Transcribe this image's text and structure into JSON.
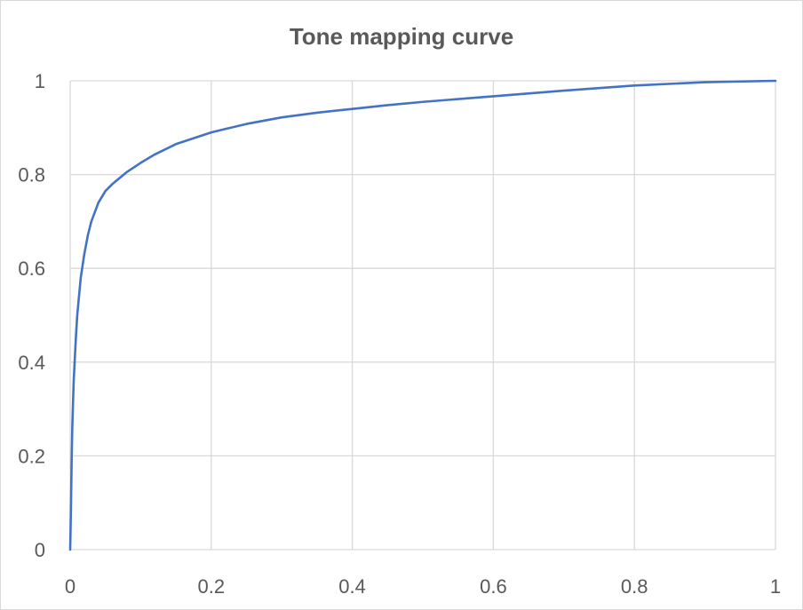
{
  "chart_data": {
    "type": "line",
    "title": "Tone mapping curve",
    "xlabel": "",
    "ylabel": "",
    "xlim": [
      0,
      1
    ],
    "ylim": [
      0,
      1
    ],
    "x_ticks": [
      "0",
      "0.2",
      "0.4",
      "0.6",
      "0.8",
      "1"
    ],
    "y_ticks": [
      "0",
      "0.2",
      "0.4",
      "0.6",
      "0.8",
      "1"
    ],
    "grid": true,
    "legend": "none",
    "colors": {
      "series": "#4472c4",
      "grid": "#d9d9d9",
      "text": "#595959"
    },
    "series": [
      {
        "x": [
          0,
          0.001,
          0.002,
          0.003,
          0.005,
          0.008,
          0.01,
          0.015,
          0.02,
          0.025,
          0.03,
          0.04,
          0.05,
          0.06,
          0.08,
          0.1,
          0.12,
          0.15,
          0.2,
          0.25,
          0.3,
          0.35,
          0.4,
          0.45,
          0.5,
          0.6,
          0.7,
          0.8,
          0.9,
          1.0
        ],
        "y": [
          0,
          0.08,
          0.18,
          0.26,
          0.36,
          0.45,
          0.5,
          0.58,
          0.63,
          0.67,
          0.7,
          0.74,
          0.765,
          0.78,
          0.805,
          0.825,
          0.843,
          0.865,
          0.89,
          0.908,
          0.922,
          0.932,
          0.94,
          0.948,
          0.955,
          0.967,
          0.979,
          0.99,
          0.997,
          1.0
        ]
      }
    ]
  }
}
